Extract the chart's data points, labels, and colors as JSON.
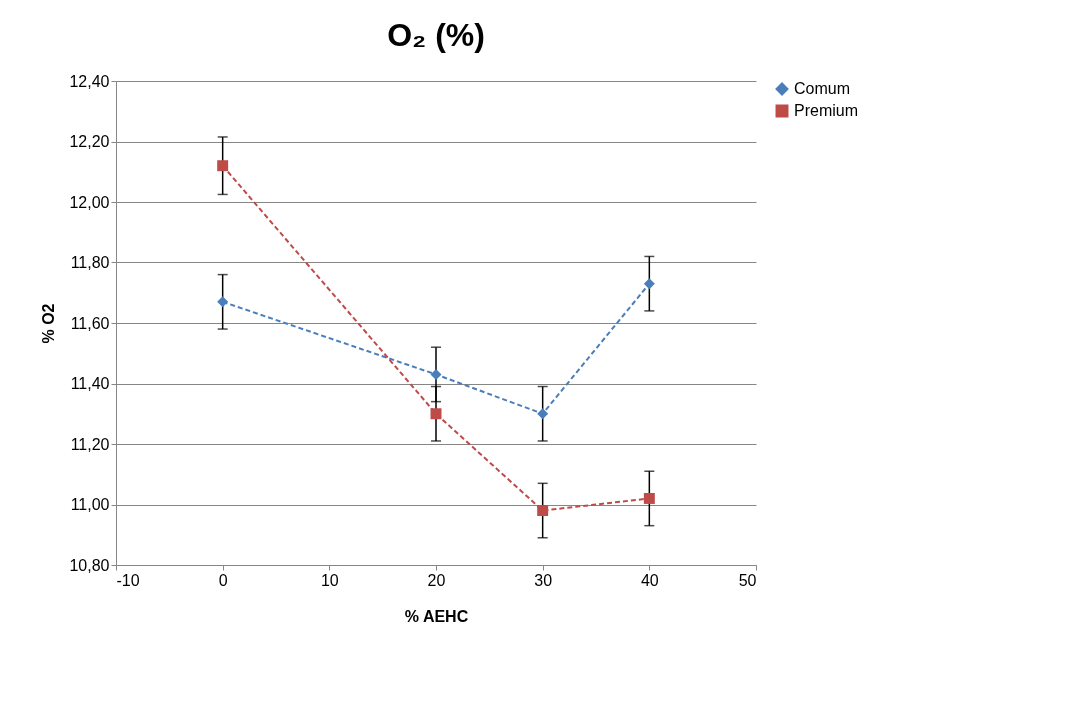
{
  "chart_data": {
    "type": "line",
    "title": "O₂ (%)",
    "xlabel": "% AEHC",
    "ylabel": "% O2",
    "x": [
      0,
      20,
      30,
      40
    ],
    "series": [
      {
        "name": "Comum",
        "color": "#4a7ebb",
        "marker": "diamond",
        "values": [
          11.67,
          11.43,
          11.3,
          11.73
        ],
        "errors": [
          0.09,
          0.09,
          0.09,
          0.09
        ]
      },
      {
        "name": "Premium",
        "color": "#be4b48",
        "marker": "square",
        "values": [
          12.12,
          11.3,
          10.98,
          11.02
        ],
        "errors": [
          0.095,
          0.09,
          0.09,
          0.09
        ]
      }
    ],
    "xlim": [
      -10,
      50
    ],
    "xticks": [
      -10,
      0,
      10,
      20,
      30,
      40,
      50
    ],
    "ylim": [
      10.8,
      12.4
    ],
    "yticks": [
      {
        "value": 10.8,
        "label": "10,80"
      },
      {
        "value": 11.0,
        "label": "11,00"
      },
      {
        "value": 11.2,
        "label": "11,20"
      },
      {
        "value": 11.4,
        "label": "11,40"
      },
      {
        "value": 11.6,
        "label": "11,60"
      },
      {
        "value": 11.8,
        "label": "11,80"
      },
      {
        "value": 12.0,
        "label": "12,00"
      },
      {
        "value": 12.2,
        "label": "12,20"
      },
      {
        "value": 12.4,
        "label": "12,40"
      }
    ],
    "grid": "y",
    "legend": "right",
    "line_style": "dashed"
  }
}
